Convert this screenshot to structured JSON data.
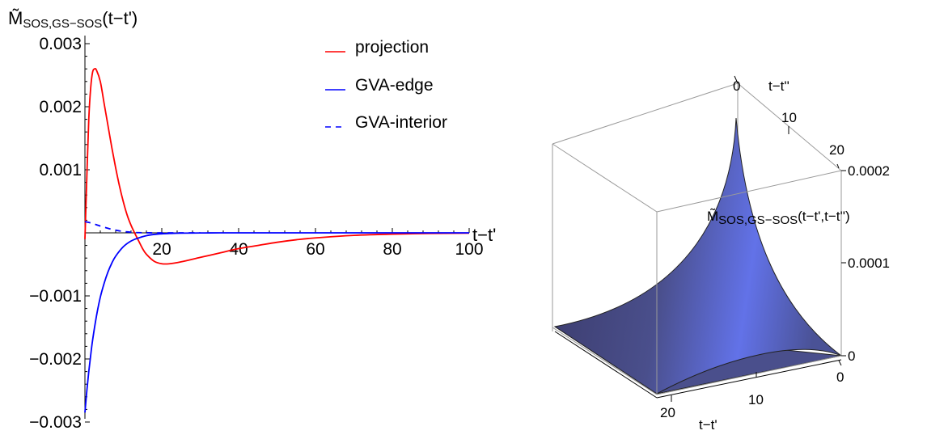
{
  "chart_data": [
    {
      "type": "line",
      "ylabel_main": "M̃",
      "ylabel_sub": "SOS,GS−SOS",
      "ylabel_tail": "(t−t')",
      "xlabel": "t−t'",
      "xlim": [
        0,
        100
      ],
      "ylim": [
        -0.003,
        0.003
      ],
      "xticks": [
        20,
        40,
        60,
        80,
        100
      ],
      "yticks": [
        0.003,
        0.002,
        0.001,
        -0.001,
        -0.002,
        -0.003
      ],
      "xtick_labels": [
        "20",
        "40",
        "60",
        "80",
        "100"
      ],
      "ytick_labels": [
        "0.003",
        "0.002",
        "0.001",
        "−0.001",
        "−0.002",
        "−0.003"
      ],
      "legend_position": "top-center",
      "series": [
        {
          "name": "projection",
          "color": "#ff0000",
          "style": "solid",
          "x": [
            0,
            0.5,
            1,
            1.5,
            2,
            2.5,
            3,
            4,
            5,
            6,
            7,
            8,
            9,
            10,
            11,
            12,
            13,
            14,
            15,
            16,
            18,
            20,
            22,
            25,
            30,
            35,
            40,
            45,
            50,
            55,
            60,
            70,
            80,
            90,
            100
          ],
          "y": [
            -0.0001,
            0.0009,
            0.0018,
            0.0023,
            0.00255,
            0.0026,
            0.00258,
            0.0024,
            0.00205,
            0.0017,
            0.00135,
            0.00103,
            0.00074,
            0.00049,
            0.00028,
            0.00012,
            -1e-05,
            -0.00013,
            -0.00025,
            -0.00034,
            -0.00045,
            -0.00049,
            -0.00049,
            -0.00046,
            -0.00039,
            -0.00032,
            -0.00025,
            -0.0002,
            -0.00015,
            -0.00011,
            -8e-05,
            -4e-05,
            -2e-05,
            -1e-05,
            -5e-06
          ]
        },
        {
          "name": "GVA-edge",
          "color": "#0000ff",
          "style": "solid",
          "x": [
            0,
            0.5,
            1,
            1.5,
            2,
            3,
            4,
            5,
            6,
            7,
            8,
            10,
            12,
            14,
            16,
            18,
            20,
            22,
            25,
            30,
            35,
            40,
            50,
            60,
            70,
            80,
            90,
            100
          ],
          "y": [
            -0.00285,
            -0.0025,
            -0.0022,
            -0.00194,
            -0.0017,
            -0.00132,
            -0.00102,
            -0.0008,
            -0.00062,
            -0.00048,
            -0.00037,
            -0.00022,
            -0.00013,
            -8e-05,
            -4.5e-05,
            -2.5e-05,
            -1.5e-05,
            -1e-05,
            -5e-06,
            -2e-06,
            0,
            0,
            0,
            0,
            0,
            0,
            0,
            0
          ]
        },
        {
          "name": "GVA-interior",
          "color": "#0000ff",
          "style": "dashed",
          "x": [
            0,
            1,
            2,
            3,
            4,
            5,
            6,
            7,
            8,
            9,
            10,
            11,
            12,
            13,
            14,
            15,
            17,
            20,
            25,
            30
          ],
          "y": [
            0.00018,
            0.000165,
            0.000148,
            0.000128,
            0.000108,
            9e-05,
            7.2e-05,
            5.6e-05,
            4.3e-05,
            3.1e-05,
            2.2e-05,
            1.5e-05,
            1e-05,
            6e-06,
            3e-06,
            1.5e-06,
            5e-07,
            0,
            0,
            0
          ]
        }
      ]
    },
    {
      "type": "surface3d",
      "zlabel_main": "M̃",
      "zlabel_sub": "SOS,GS−SOS",
      "zlabel_tail": "(t−t',t−t'')",
      "xlabel": "t−t'",
      "ylabel": "t−t''",
      "xlim": [
        0,
        25
      ],
      "ylim": [
        0,
        25
      ],
      "zlim": [
        0,
        0.0002
      ],
      "xtick_labels": [
        "0",
        "10",
        "20"
      ],
      "ytick_labels": [
        "0",
        "10",
        "20"
      ],
      "ztick_labels": [
        "0",
        "0.0001",
        "0.0002"
      ],
      "surface_colors": [
        "#4a4f8c",
        "#6272e8",
        "#3a3a6a"
      ]
    }
  ]
}
